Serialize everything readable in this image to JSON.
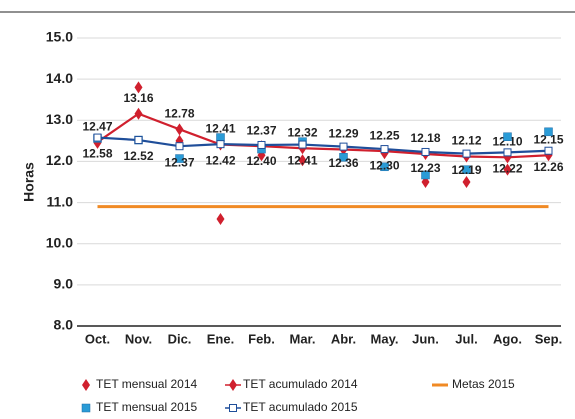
{
  "chart_data": {
    "type": "line",
    "ylabel": "Horas",
    "categories": [
      "Oct.",
      "Nov.",
      "Dic.",
      "Ene.",
      "Feb.",
      "Mar.",
      "Abr.",
      "May.",
      "Jun.",
      "Jul.",
      "Ago.",
      "Sep."
    ],
    "ylim": [
      8,
      15
    ],
    "yticks": [
      {
        "value": 8,
        "label": "8.0"
      },
      {
        "value": 9,
        "label": "9.0"
      },
      {
        "value": 10,
        "label": "10.0"
      },
      {
        "value": 11,
        "label": "11.0"
      },
      {
        "value": 12,
        "label": "12.0"
      },
      {
        "value": 13,
        "label": "13.0"
      },
      {
        "value": 14,
        "label": "14.0"
      },
      {
        "value": 15,
        "label": "15.0"
      }
    ],
    "grid": true,
    "series": [
      {
        "name": "TET mensual 2014",
        "color": "#d0202e",
        "marker": "diamond",
        "line": false,
        "values": [
          12.45,
          13.8,
          12.5,
          10.6,
          12.15,
          12.03,
          12.3,
          12.2,
          11.5,
          11.5,
          11.8,
          12.2
        ]
      },
      {
        "name": "TET acumulado 2014",
        "color": "#d0202e",
        "marker": "diamond",
        "line": true,
        "label_pos": "above",
        "values": [
          12.47,
          13.16,
          12.78,
          12.41,
          12.37,
          12.32,
          12.29,
          12.25,
          12.18,
          12.12,
          12.1,
          12.15
        ],
        "value_labels": [
          "12.47",
          "13.16",
          "12.78",
          "12.41",
          "12.37",
          "12.32",
          "12.29",
          "12.25",
          "12.18",
          "12.12",
          "12.10",
          "12.15"
        ]
      },
      {
        "name": "Metas 2015",
        "color": "#f08a24",
        "marker": "none",
        "line": true,
        "values": [
          10.9,
          10.9,
          10.9,
          10.9,
          10.9,
          10.9,
          10.9,
          10.9,
          10.9,
          10.9,
          10.9,
          10.9
        ]
      },
      {
        "name": "TET mensual 2015",
        "color": "#2a9bd6",
        "marker": "square",
        "line": false,
        "values": [
          12.56,
          12.52,
          12.07,
          12.58,
          12.3,
          12.48,
          12.1,
          11.87,
          11.67,
          11.8,
          12.6,
          12.72
        ]
      },
      {
        "name": "TET acumulado 2015",
        "color": "#1f4e9a",
        "marker": "square-open",
        "line": true,
        "label_pos": "below",
        "values": [
          12.58,
          12.52,
          12.37,
          12.42,
          12.4,
          12.41,
          12.36,
          12.3,
          12.23,
          12.19,
          12.22,
          12.26
        ],
        "value_labels": [
          "12.58",
          "12.52",
          "12.37",
          "12.42",
          "12.40",
          "12.41",
          "12.36",
          "12.30",
          "12.23",
          "12.19",
          "12.22",
          "12.26"
        ]
      }
    ]
  }
}
